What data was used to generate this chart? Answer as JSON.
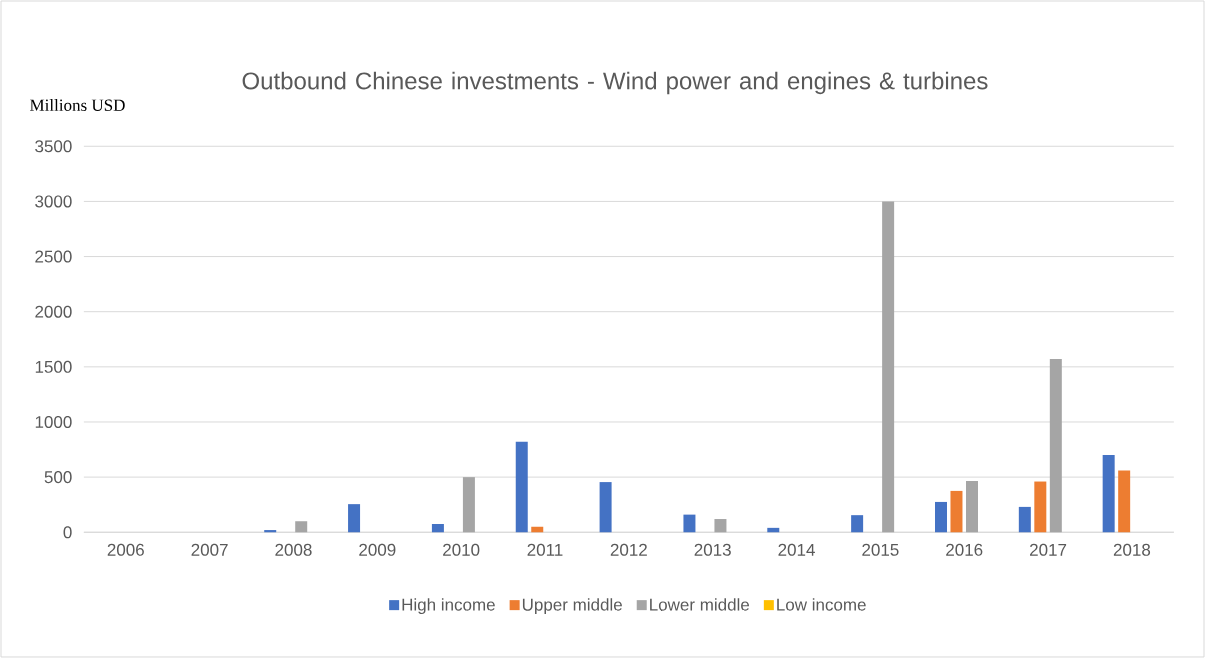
{
  "chart_data": {
    "type": "bar",
    "title": "Outbound Chinese investments - Wind power and engines & turbines",
    "ylabel": "Millions USD",
    "categories": [
      "2006",
      "2007",
      "2008",
      "2009",
      "2010",
      "2011",
      "2012",
      "2013",
      "2014",
      "2015",
      "2016",
      "2017",
      "2018"
    ],
    "series": [
      {
        "name": "High income",
        "color": "#4472c4",
        "values": [
          null,
          null,
          20,
          255,
          75,
          820,
          455,
          160,
          40,
          155,
          275,
          230,
          700
        ]
      },
      {
        "name": "Upper middle",
        "color": "#ed7d31",
        "values": [
          null,
          null,
          null,
          null,
          null,
          50,
          null,
          null,
          null,
          null,
          375,
          460,
          560
        ]
      },
      {
        "name": "Lower middle",
        "color": "#a5a5a5",
        "values": [
          null,
          null,
          100,
          null,
          500,
          null,
          null,
          120,
          null,
          3000,
          465,
          1570,
          null
        ]
      },
      {
        "name": "Low income",
        "color": "#ffc000",
        "values": [
          null,
          null,
          null,
          null,
          null,
          null,
          null,
          null,
          null,
          null,
          null,
          null,
          null
        ]
      }
    ],
    "ylim": [
      0,
      3500
    ],
    "yticks": [
      0,
      500,
      1000,
      1500,
      2000,
      2500,
      3000,
      3500
    ],
    "grid": "y",
    "legend": "bottom"
  }
}
